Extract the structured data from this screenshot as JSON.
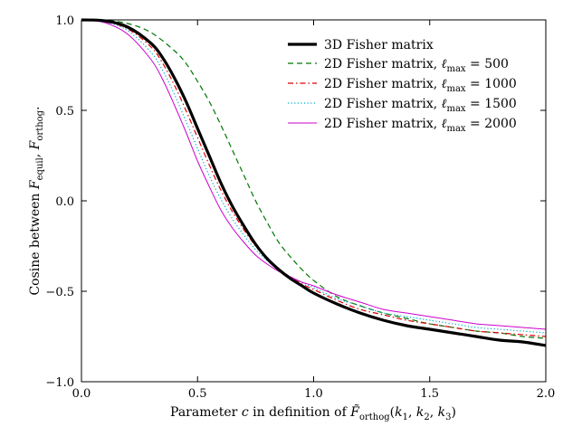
{
  "chart_data": {
    "type": "line",
    "title": "",
    "xlabel": "Parameter c in definition of F̃orthog(k1, k2, k3)",
    "xlabel_parts": {
      "prefix": "Parameter ",
      "var": "c",
      "middle": " in definition of ",
      "func": "F̃",
      "func_sub": "orthog",
      "args_open": "(",
      "k1": "k",
      "k1_sub": "1",
      "sep1": ", ",
      "k2": "k",
      "k2_sub": "2",
      "sep2": ", ",
      "k3": "k",
      "k3_sub": "3",
      "args_close": ")"
    },
    "ylabel": "Cosine between Fequil, Forthog.",
    "ylabel_parts": {
      "prefix": "Cosine between ",
      "f1": "F",
      "f1_sub": "equil",
      "sep": ", ",
      "f2": "F",
      "f2_sub": "orthog",
      "suffix": "."
    },
    "xlim": [
      0.0,
      2.0
    ],
    "ylim": [
      -1.0,
      1.0
    ],
    "xticks": [
      0.0,
      0.5,
      1.0,
      1.5,
      2.0
    ],
    "xtick_labels": [
      "0.0",
      "0.5",
      "1.0",
      "1.5",
      "2.0"
    ],
    "yticks": [
      1.0,
      0.5,
      0.0,
      -0.5,
      -1.0
    ],
    "ytick_labels": [
      "1.0",
      "0.5",
      "0.0",
      "−0.5",
      "−1.0"
    ],
    "grid": false,
    "legend_position": "upper-right",
    "series": [
      {
        "name": "3D Fisher matrix",
        "legend": {
          "text": "3D Fisher matrix"
        },
        "color": "#000000",
        "style": "solid-thick",
        "x": [
          0.0,
          0.1,
          0.2,
          0.3,
          0.35,
          0.4,
          0.45,
          0.5,
          0.55,
          0.6,
          0.65,
          0.7,
          0.75,
          0.8,
          0.85,
          0.9,
          0.95,
          1.0,
          1.1,
          1.2,
          1.3,
          1.4,
          1.5,
          1.6,
          1.7,
          1.8,
          1.9,
          2.0
        ],
        "y": [
          1.0,
          0.995,
          0.96,
          0.87,
          0.79,
          0.68,
          0.55,
          0.4,
          0.25,
          0.1,
          -0.03,
          -0.14,
          -0.24,
          -0.32,
          -0.38,
          -0.43,
          -0.47,
          -0.51,
          -0.57,
          -0.62,
          -0.66,
          -0.69,
          -0.71,
          -0.73,
          -0.75,
          -0.77,
          -0.78,
          -0.8
        ]
      },
      {
        "name": "2D Fisher matrix, lmax = 500",
        "legend": {
          "prefix": "2D Fisher matrix, ",
          "ell": "ℓ",
          "sub": "max",
          "suffix": " = 500"
        },
        "color": "#007700",
        "style": "dashed",
        "x": [
          0.0,
          0.1,
          0.2,
          0.3,
          0.4,
          0.45,
          0.5,
          0.55,
          0.6,
          0.65,
          0.7,
          0.75,
          0.8,
          0.85,
          0.9,
          0.95,
          1.0,
          1.1,
          1.2,
          1.3,
          1.4,
          1.5,
          1.6,
          1.7,
          1.8,
          1.9,
          2.0
        ],
        "y": [
          1.0,
          0.998,
          0.98,
          0.93,
          0.83,
          0.76,
          0.66,
          0.55,
          0.42,
          0.28,
          0.14,
          0.0,
          -0.12,
          -0.23,
          -0.31,
          -0.38,
          -0.44,
          -0.53,
          -0.58,
          -0.62,
          -0.65,
          -0.68,
          -0.7,
          -0.72,
          -0.73,
          -0.75,
          -0.76
        ]
      },
      {
        "name": "2D Fisher matrix, lmax = 1000",
        "legend": {
          "prefix": "2D Fisher matrix, ",
          "ell": "ℓ",
          "sub": "max",
          "suffix": " = 1000"
        },
        "color": "#dd0000",
        "style": "dashdot",
        "x": [
          0.0,
          0.1,
          0.2,
          0.3,
          0.35,
          0.4,
          0.45,
          0.5,
          0.55,
          0.6,
          0.65,
          0.7,
          0.75,
          0.8,
          0.85,
          0.9,
          0.95,
          1.0,
          1.1,
          1.2,
          1.3,
          1.4,
          1.5,
          1.6,
          1.7,
          1.8,
          1.9,
          2.0
        ],
        "y": [
          1.0,
          0.99,
          0.95,
          0.85,
          0.76,
          0.64,
          0.5,
          0.35,
          0.2,
          0.06,
          -0.06,
          -0.16,
          -0.25,
          -0.32,
          -0.38,
          -0.42,
          -0.46,
          -0.49,
          -0.55,
          -0.6,
          -0.63,
          -0.66,
          -0.68,
          -0.7,
          -0.72,
          -0.73,
          -0.74,
          -0.75
        ]
      },
      {
        "name": "2D Fisher matrix, lmax = 1500",
        "legend": {
          "prefix": "2D Fisher matrix, ",
          "ell": "ℓ",
          "sub": "max",
          "suffix": " = 1500"
        },
        "color": "#00aacc",
        "style": "dotted",
        "x": [
          0.0,
          0.1,
          0.2,
          0.3,
          0.35,
          0.4,
          0.45,
          0.5,
          0.55,
          0.6,
          0.65,
          0.7,
          0.75,
          0.8,
          0.85,
          0.9,
          0.95,
          1.0,
          1.1,
          1.2,
          1.3,
          1.4,
          1.5,
          1.6,
          1.7,
          1.8,
          1.9,
          2.0
        ],
        "y": [
          1.0,
          0.99,
          0.94,
          0.82,
          0.72,
          0.59,
          0.44,
          0.29,
          0.14,
          0.01,
          -0.1,
          -0.19,
          -0.27,
          -0.33,
          -0.38,
          -0.42,
          -0.45,
          -0.48,
          -0.54,
          -0.58,
          -0.62,
          -0.64,
          -0.66,
          -0.68,
          -0.7,
          -0.71,
          -0.72,
          -0.73
        ]
      },
      {
        "name": "2D Fisher matrix, lmax = 2000",
        "legend": {
          "prefix": "2D Fisher matrix, ",
          "ell": "ℓ",
          "sub": "max",
          "suffix": " = 2000"
        },
        "color": "#cc00cc",
        "style": "solid-thin",
        "x": [
          0.0,
          0.1,
          0.2,
          0.3,
          0.35,
          0.4,
          0.45,
          0.5,
          0.55,
          0.6,
          0.65,
          0.7,
          0.75,
          0.8,
          0.85,
          0.9,
          0.95,
          1.0,
          1.1,
          1.2,
          1.3,
          1.4,
          1.5,
          1.6,
          1.7,
          1.8,
          1.9,
          2.0
        ],
        "y": [
          1.0,
          0.985,
          0.92,
          0.78,
          0.67,
          0.53,
          0.38,
          0.22,
          0.08,
          -0.05,
          -0.15,
          -0.23,
          -0.3,
          -0.35,
          -0.39,
          -0.42,
          -0.45,
          -0.47,
          -0.52,
          -0.56,
          -0.6,
          -0.62,
          -0.64,
          -0.66,
          -0.68,
          -0.69,
          -0.7,
          -0.71
        ]
      }
    ]
  }
}
